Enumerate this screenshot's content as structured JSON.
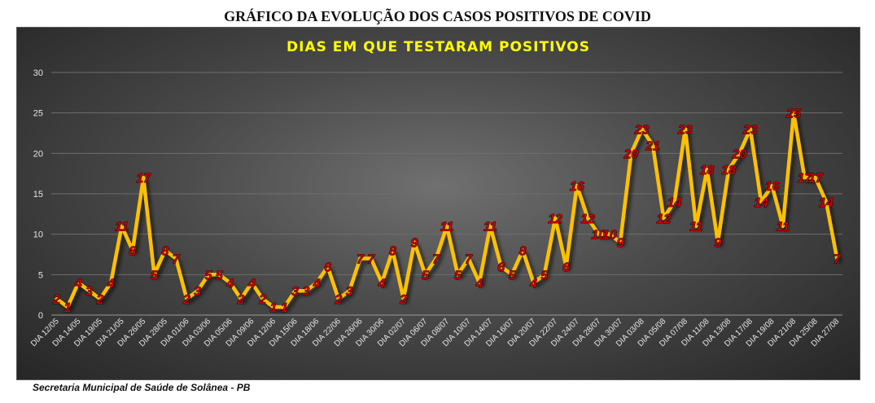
{
  "page_title": "GRÁFICO DA EVOLUÇÃO DOS CASOS POSITIVOS DE COVID",
  "footer": "Secretaria Municipal de Saúde de Solânea - PB",
  "chart_data": {
    "type": "line",
    "title": "DIAS EM QUE TESTARAM POSITIVOS",
    "ylim": [
      0,
      30
    ],
    "yticks": [
      0,
      5,
      10,
      15,
      20,
      25,
      30
    ],
    "grid": true,
    "line_color": "#ffc000",
    "label_color": "#cc0000",
    "title_color": "#ffff00",
    "categories": [
      "DIA 12/05",
      "",
      "DIA 14/05",
      "",
      "DIA 19/05",
      "",
      "DIA 21/05",
      "",
      "DIA 26/05",
      "",
      "DIA 28/05",
      "",
      "DIA 01/06",
      "",
      "DIA 03/06",
      "",
      "DIA 05/06",
      "",
      "DIA 09/06",
      "",
      "DIA 12/06",
      "",
      "DIA 15/06",
      "",
      "DIA 18/06",
      "",
      "DIA 22/06",
      "",
      "DIA 26/06",
      "",
      "DIA 30/06",
      "",
      "DIA 02/07",
      "",
      "DIA 06/07",
      "",
      "DIA 08/07",
      "",
      "DIA 10/07",
      "",
      "DIA 14/07",
      "",
      "DIA 16/07",
      "",
      "DIA 20/07",
      "",
      "DIA 22/07",
      "",
      "DIA 24/07",
      "",
      "DIA 28/07",
      "",
      "DIA 30/07",
      "",
      "DIA 03/08",
      "",
      "DIA 05/08",
      "",
      "DIA 07/08",
      "",
      "DIA 11/08",
      "",
      "DIA 13/08",
      "",
      "DIA 17/08",
      "",
      "DIA 19/08",
      "",
      "DIA 21/08",
      "",
      "DIA 25/08",
      "",
      "DIA 27/08"
    ],
    "values": [
      2,
      1,
      4,
      3,
      2,
      4,
      11,
      8,
      17,
      5,
      8,
      7,
      2,
      3,
      5,
      5,
      4,
      2,
      4,
      2,
      1,
      1,
      3,
      3,
      4,
      6,
      2,
      3,
      7,
      7,
      4,
      8,
      2,
      9,
      5,
      7,
      11,
      5,
      7,
      4,
      11,
      6,
      5,
      8,
      4,
      5,
      12,
      6,
      16,
      12,
      10,
      10,
      9,
      20,
      23,
      21,
      12,
      14,
      23,
      11,
      18,
      9,
      18,
      20,
      23,
      14,
      16,
      11,
      25,
      17,
      17,
      14,
      7
    ]
  }
}
